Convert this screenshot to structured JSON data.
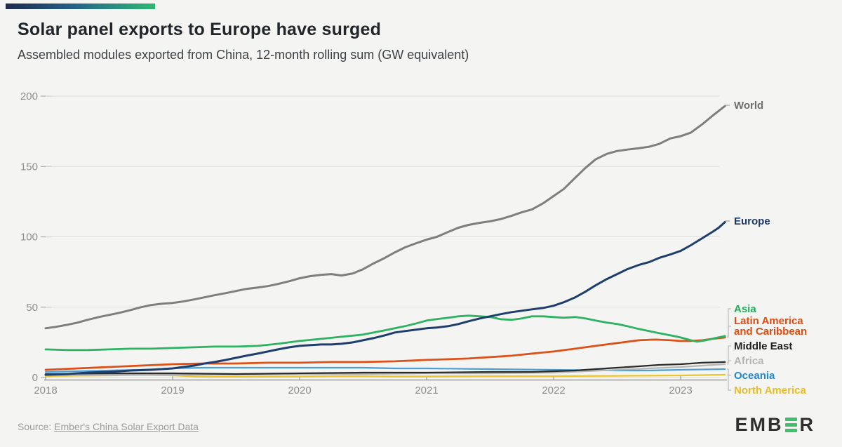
{
  "page": {
    "background": "#f4f4f2",
    "accent_bar_from": "#1d2a4c",
    "accent_bar_to": "#2eb873"
  },
  "header": {
    "title": "Solar panel exports to Europe have surged",
    "subtitle": "Assembled modules exported from China, 12-month rolling sum (GW equivalent)"
  },
  "source": {
    "prefix": "Source: ",
    "link_text": "Ember's China Solar Export Data"
  },
  "logo": {
    "text_left": "EMB",
    "text_right": "R",
    "bar_color": "#3ec06c",
    "bar_count": 3
  },
  "chart_data": {
    "type": "line",
    "title": "Solar panel exports to Europe have surged",
    "subtitle": "Assembled modules exported from China, 12-month rolling sum (GW equivalent)",
    "unit": "GW",
    "xlabel": "",
    "ylabel": "",
    "ylim": [
      0,
      200
    ],
    "yticks": [
      0,
      50,
      100,
      150,
      200
    ],
    "xticks": [
      2018,
      2019,
      2020,
      2021,
      2022,
      2023
    ],
    "grid": "horizontal",
    "legend_position": "right",
    "series": [
      {
        "name": "World",
        "color": "#7e7e7e",
        "label_color": "#6e6e6e",
        "width": 3,
        "points": [
          [
            2018.0,
            35
          ],
          [
            2018.08,
            36
          ],
          [
            2018.17,
            37.5
          ],
          [
            2018.25,
            39
          ],
          [
            2018.33,
            41
          ],
          [
            2018.42,
            43
          ],
          [
            2018.5,
            44.5
          ],
          [
            2018.58,
            46
          ],
          [
            2018.67,
            48
          ],
          [
            2018.75,
            50
          ],
          [
            2018.83,
            51.5
          ],
          [
            2018.92,
            52.5
          ],
          [
            2019.0,
            53
          ],
          [
            2019.08,
            54
          ],
          [
            2019.17,
            55.5
          ],
          [
            2019.25,
            57
          ],
          [
            2019.33,
            58.5
          ],
          [
            2019.42,
            60
          ],
          [
            2019.5,
            61.5
          ],
          [
            2019.58,
            63
          ],
          [
            2019.67,
            64
          ],
          [
            2019.75,
            65
          ],
          [
            2019.83,
            66.5
          ],
          [
            2019.92,
            68.5
          ],
          [
            2020.0,
            70.5
          ],
          [
            2020.08,
            72
          ],
          [
            2020.17,
            73
          ],
          [
            2020.25,
            73.5
          ],
          [
            2020.33,
            72.5
          ],
          [
            2020.42,
            74
          ],
          [
            2020.5,
            77
          ],
          [
            2020.58,
            81
          ],
          [
            2020.67,
            85
          ],
          [
            2020.75,
            89
          ],
          [
            2020.83,
            92.5
          ],
          [
            2020.92,
            95.5
          ],
          [
            2021.0,
            98
          ],
          [
            2021.08,
            100
          ],
          [
            2021.17,
            103.5
          ],
          [
            2021.25,
            106.5
          ],
          [
            2021.33,
            108.5
          ],
          [
            2021.42,
            110
          ],
          [
            2021.5,
            111
          ],
          [
            2021.58,
            112.5
          ],
          [
            2021.67,
            115
          ],
          [
            2021.75,
            117.5
          ],
          [
            2021.83,
            119.5
          ],
          [
            2021.92,
            124
          ],
          [
            2022.0,
            129
          ],
          [
            2022.08,
            134
          ],
          [
            2022.17,
            142
          ],
          [
            2022.25,
            149
          ],
          [
            2022.33,
            155
          ],
          [
            2022.42,
            159
          ],
          [
            2022.5,
            161
          ],
          [
            2022.58,
            162
          ],
          [
            2022.67,
            163
          ],
          [
            2022.75,
            164
          ],
          [
            2022.83,
            166
          ],
          [
            2022.92,
            170
          ],
          [
            2023.0,
            171.5
          ],
          [
            2023.08,
            174
          ],
          [
            2023.17,
            180
          ],
          [
            2023.25,
            186
          ],
          [
            2023.3,
            189.5
          ],
          [
            2023.35,
            193
          ]
        ]
      },
      {
        "name": "Europe",
        "color": "#1e3e6d",
        "label_color": "#1d3a66",
        "width": 3,
        "points": [
          [
            2018.0,
            2
          ],
          [
            2018.17,
            2.5
          ],
          [
            2018.33,
            3.5
          ],
          [
            2018.5,
            4
          ],
          [
            2018.67,
            5
          ],
          [
            2018.83,
            5.5
          ],
          [
            2019.0,
            6.5
          ],
          [
            2019.08,
            7.5
          ],
          [
            2019.17,
            8.5
          ],
          [
            2019.25,
            10
          ],
          [
            2019.33,
            11
          ],
          [
            2019.42,
            12.5
          ],
          [
            2019.5,
            14
          ],
          [
            2019.58,
            15.5
          ],
          [
            2019.67,
            17
          ],
          [
            2019.75,
            18.5
          ],
          [
            2019.83,
            20
          ],
          [
            2019.92,
            21.5
          ],
          [
            2020.0,
            22.5
          ],
          [
            2020.08,
            23
          ],
          [
            2020.17,
            23.5
          ],
          [
            2020.25,
            23.5
          ],
          [
            2020.33,
            24
          ],
          [
            2020.42,
            25
          ],
          [
            2020.5,
            26.5
          ],
          [
            2020.58,
            28
          ],
          [
            2020.67,
            30
          ],
          [
            2020.75,
            32
          ],
          [
            2020.83,
            33
          ],
          [
            2020.92,
            34
          ],
          [
            2021.0,
            35
          ],
          [
            2021.08,
            35.5
          ],
          [
            2021.17,
            36.5
          ],
          [
            2021.25,
            38
          ],
          [
            2021.33,
            40
          ],
          [
            2021.42,
            42
          ],
          [
            2021.5,
            43.5
          ],
          [
            2021.58,
            45
          ],
          [
            2021.67,
            46.5
          ],
          [
            2021.75,
            47.5
          ],
          [
            2021.83,
            48.5
          ],
          [
            2021.92,
            49.5
          ],
          [
            2022.0,
            51
          ],
          [
            2022.08,
            53.5
          ],
          [
            2022.17,
            57
          ],
          [
            2022.25,
            61
          ],
          [
            2022.33,
            65.5
          ],
          [
            2022.42,
            70
          ],
          [
            2022.5,
            73.5
          ],
          [
            2022.58,
            77
          ],
          [
            2022.67,
            80
          ],
          [
            2022.75,
            82
          ],
          [
            2022.83,
            85
          ],
          [
            2022.92,
            87.5
          ],
          [
            2023.0,
            90
          ],
          [
            2023.08,
            94
          ],
          [
            2023.17,
            99
          ],
          [
            2023.25,
            103.5
          ],
          [
            2023.3,
            106.5
          ],
          [
            2023.35,
            110.5
          ]
        ]
      },
      {
        "name": "Asia",
        "color": "#2cb261",
        "label_color": "#21ab57",
        "width": 2.8,
        "points": [
          [
            2018.0,
            20
          ],
          [
            2018.17,
            19.5
          ],
          [
            2018.33,
            19.5
          ],
          [
            2018.5,
            20
          ],
          [
            2018.67,
            20.5
          ],
          [
            2018.83,
            20.5
          ],
          [
            2019.0,
            21
          ],
          [
            2019.17,
            21.5
          ],
          [
            2019.33,
            22
          ],
          [
            2019.5,
            22
          ],
          [
            2019.67,
            22.5
          ],
          [
            2019.83,
            24
          ],
          [
            2020.0,
            26
          ],
          [
            2020.17,
            27.5
          ],
          [
            2020.33,
            29
          ],
          [
            2020.5,
            30.5
          ],
          [
            2020.67,
            33.5
          ],
          [
            2020.83,
            36.5
          ],
          [
            2020.92,
            38.5
          ],
          [
            2021.0,
            40.5
          ],
          [
            2021.08,
            41.5
          ],
          [
            2021.17,
            42.5
          ],
          [
            2021.25,
            43.5
          ],
          [
            2021.33,
            44
          ],
          [
            2021.42,
            43.5
          ],
          [
            2021.5,
            43
          ],
          [
            2021.58,
            41.5
          ],
          [
            2021.67,
            41
          ],
          [
            2021.75,
            42
          ],
          [
            2021.83,
            43.5
          ],
          [
            2021.92,
            43.5
          ],
          [
            2022.0,
            43
          ],
          [
            2022.08,
            42.5
          ],
          [
            2022.17,
            43
          ],
          [
            2022.25,
            42
          ],
          [
            2022.33,
            40.5
          ],
          [
            2022.42,
            39
          ],
          [
            2022.5,
            38
          ],
          [
            2022.58,
            36.5
          ],
          [
            2022.67,
            34.5
          ],
          [
            2022.75,
            33
          ],
          [
            2022.83,
            31.5
          ],
          [
            2022.92,
            30
          ],
          [
            2023.0,
            28.5
          ],
          [
            2023.08,
            26.5
          ],
          [
            2023.13,
            25.5
          ],
          [
            2023.2,
            26.5
          ],
          [
            2023.27,
            28
          ],
          [
            2023.35,
            29.5
          ]
        ]
      },
      {
        "name": "Latin America and Caribbean",
        "label_lines": [
          "Latin America",
          "and Caribbean"
        ],
        "color": "#dd5016",
        "label_color": "#e04b10",
        "width": 2.8,
        "points": [
          [
            2018.0,
            5.5
          ],
          [
            2018.25,
            6.5
          ],
          [
            2018.5,
            7.5
          ],
          [
            2018.75,
            8.5
          ],
          [
            2019.0,
            9.5
          ],
          [
            2019.25,
            10
          ],
          [
            2019.5,
            10
          ],
          [
            2019.75,
            10.5
          ],
          [
            2020.0,
            10.5
          ],
          [
            2020.25,
            11
          ],
          [
            2020.5,
            11
          ],
          [
            2020.75,
            11.5
          ],
          [
            2021.0,
            12.5
          ],
          [
            2021.17,
            13
          ],
          [
            2021.33,
            13.5
          ],
          [
            2021.5,
            14.5
          ],
          [
            2021.67,
            15.5
          ],
          [
            2021.83,
            17
          ],
          [
            2022.0,
            18.5
          ],
          [
            2022.17,
            20.5
          ],
          [
            2022.33,
            22.5
          ],
          [
            2022.5,
            24.5
          ],
          [
            2022.67,
            26.5
          ],
          [
            2022.8,
            27
          ],
          [
            2022.92,
            26.5
          ],
          [
            2023.0,
            26
          ],
          [
            2023.08,
            26
          ],
          [
            2023.17,
            26.5
          ],
          [
            2023.25,
            27.5
          ],
          [
            2023.35,
            28.5
          ]
        ]
      },
      {
        "name": "Middle East",
        "color": "#2a2a2a",
        "label_color": "#1f1f1f",
        "width": 2.2,
        "points": [
          [
            2018.0,
            2.5
          ],
          [
            2018.5,
            3
          ],
          [
            2019.0,
            3
          ],
          [
            2019.5,
            2.5
          ],
          [
            2020.0,
            3
          ],
          [
            2020.5,
            3.5
          ],
          [
            2021.0,
            3.5
          ],
          [
            2021.5,
            4
          ],
          [
            2021.83,
            4
          ],
          [
            2022.0,
            4.5
          ],
          [
            2022.17,
            5
          ],
          [
            2022.33,
            6
          ],
          [
            2022.5,
            7
          ],
          [
            2022.67,
            8
          ],
          [
            2022.83,
            9
          ],
          [
            2023.0,
            9.5
          ],
          [
            2023.17,
            10.5
          ],
          [
            2023.35,
            11
          ]
        ]
      },
      {
        "name": "Africa",
        "color": "#b5b5b3",
        "label_color": "#b5b5b5",
        "width": 2.2,
        "points": [
          [
            2018.0,
            1.5
          ],
          [
            2018.5,
            2
          ],
          [
            2019.0,
            2
          ],
          [
            2019.5,
            2
          ],
          [
            2020.0,
            2.5
          ],
          [
            2020.5,
            2.5
          ],
          [
            2021.0,
            3
          ],
          [
            2021.5,
            3
          ],
          [
            2022.0,
            3.5
          ],
          [
            2022.25,
            4.5
          ],
          [
            2022.5,
            5.5
          ],
          [
            2022.75,
            6.5
          ],
          [
            2023.0,
            7.5
          ],
          [
            2023.17,
            8.5
          ],
          [
            2023.35,
            9.5
          ]
        ]
      },
      {
        "name": "Oceania",
        "color": "#4a9fd8",
        "label_color": "#2089cf",
        "width": 2.2,
        "points": [
          [
            2018.0,
            4
          ],
          [
            2018.25,
            4.5
          ],
          [
            2018.5,
            5
          ],
          [
            2018.75,
            5.5
          ],
          [
            2019.0,
            6.5
          ],
          [
            2019.25,
            7
          ],
          [
            2019.5,
            7
          ],
          [
            2020.0,
            7
          ],
          [
            2020.5,
            7
          ],
          [
            2020.75,
            6.5
          ],
          [
            2021.0,
            6.5
          ],
          [
            2021.5,
            6
          ],
          [
            2022.0,
            5.5
          ],
          [
            2022.5,
            5
          ],
          [
            2022.75,
            5
          ],
          [
            2023.0,
            5.5
          ],
          [
            2023.35,
            6
          ]
        ]
      },
      {
        "name": "North America",
        "color": "#e9c52f",
        "label_color": "#e6bd28",
        "width": 2.2,
        "points": [
          [
            2018.0,
            1
          ],
          [
            2018.25,
            1.3
          ],
          [
            2018.5,
            1.5
          ],
          [
            2018.75,
            1.8
          ],
          [
            2019.0,
            1.5
          ],
          [
            2019.17,
            0.8
          ],
          [
            2019.33,
            0.5
          ],
          [
            2019.5,
            0.5
          ],
          [
            2019.75,
            0.7
          ],
          [
            2020.0,
            0.8
          ],
          [
            2020.33,
            1
          ],
          [
            2020.5,
            1
          ],
          [
            2020.75,
            0.8
          ],
          [
            2021.0,
            0.8
          ],
          [
            2021.5,
            1
          ],
          [
            2022.0,
            1
          ],
          [
            2022.5,
            1.2
          ],
          [
            2023.0,
            1.5
          ],
          [
            2023.35,
            2
          ]
        ]
      }
    ]
  }
}
